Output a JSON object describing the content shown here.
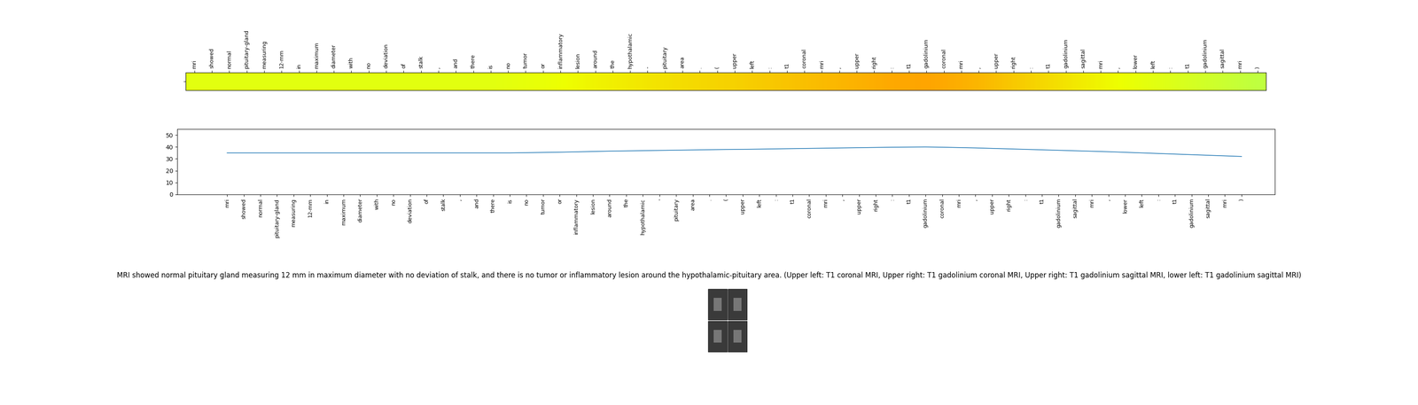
{
  "chart_data": [
    {
      "type": "heatmap",
      "categories": [
        "mri",
        "showed",
        "normal",
        "pituitary-gland",
        "measuring",
        "12-mm",
        "in",
        "maximum",
        "diameter",
        "with",
        "no",
        "deviation",
        "of",
        "stalk",
        ",",
        "and",
        "there",
        "is",
        "no",
        "tumor",
        "or",
        "inflammatory",
        "lesion",
        "around",
        "the",
        "hypothalamic",
        "-",
        "pituitary",
        "area",
        ".",
        "(",
        "upper",
        "left",
        ":",
        "t1",
        "coronal",
        "mri",
        ",",
        "upper",
        "right",
        ":",
        "t1",
        "gadolinium",
        "coronal",
        "mri",
        ",",
        "upper",
        "right",
        ":",
        "t1",
        "gadolinium",
        "sagittal",
        "mri",
        ",",
        "lower",
        "left",
        ":",
        "t1",
        "gadolinium",
        "sagittal",
        "mri",
        ")"
      ],
      "values": [
        35,
        35,
        35,
        35,
        35,
        35,
        35,
        35,
        35,
        35,
        35,
        35,
        35,
        35,
        35,
        35,
        35,
        35,
        35.2,
        35.4,
        35.6,
        35.9,
        36.2,
        36.5,
        36.7,
        36.9,
        37.1,
        37.3,
        37.5,
        37.7,
        37.9,
        38.0,
        38.2,
        38.4,
        38.6,
        38.8,
        39.0,
        39.2,
        39.4,
        39.6,
        39.8,
        39.9,
        40.0,
        39.8,
        39.5,
        39.2,
        38.8,
        38.4,
        38.0,
        37.6,
        37.2,
        36.8,
        36.4,
        36.0,
        35.5,
        35.0,
        34.5,
        34.0,
        33.5,
        33.0,
        32.5,
        32.0
      ]
    },
    {
      "type": "line",
      "color": "#1f77b4",
      "categories": [
        "mri",
        "showed",
        "normal",
        "pituitary-gland",
        "measuring",
        "12-mm",
        "in",
        "maximum",
        "diameter",
        "with",
        "no",
        "deviation",
        "of",
        "stalk",
        ",",
        "and",
        "there",
        "is",
        "no",
        "tumor",
        "or",
        "inflammatory",
        "lesion",
        "around",
        "the",
        "hypothalamic",
        "-",
        "pituitary",
        "area",
        ".",
        "(",
        "upper",
        "left",
        ":",
        "t1",
        "coronal",
        "mri",
        ",",
        "upper",
        "right",
        ":",
        "t1",
        "gadolinium",
        "coronal",
        "mri",
        ",",
        "upper",
        "right",
        ":",
        "t1",
        "gadolinium",
        "sagittal",
        "mri",
        ",",
        "lower",
        "left",
        ":",
        "t1",
        "gadolinium",
        "sagittal",
        "mri",
        ")"
      ],
      "values": [
        35,
        35,
        35,
        35,
        35,
        35,
        35,
        35,
        35,
        35,
        35,
        35,
        35,
        35,
        35,
        35,
        35,
        35,
        35.2,
        35.4,
        35.6,
        35.9,
        36.2,
        36.5,
        36.7,
        36.9,
        37.1,
        37.3,
        37.5,
        37.7,
        37.9,
        38.0,
        38.2,
        38.4,
        38.6,
        38.8,
        39.0,
        39.2,
        39.4,
        39.6,
        39.8,
        39.9,
        40.0,
        39.8,
        39.5,
        39.2,
        38.8,
        38.4,
        38.0,
        37.6,
        37.2,
        36.8,
        36.4,
        36.0,
        35.5,
        35.0,
        34.5,
        34.0,
        33.5,
        33.0,
        32.5,
        32.0
      ],
      "ylim": [
        0,
        55
      ],
      "yticks": [
        0,
        10,
        20,
        30,
        40,
        50
      ]
    }
  ],
  "caption": "MRI showed normal pituitary gland measuring 12 mm in maximum diameter with no deviation of stalk, and there is no tumor or inflammatory lesion around the hypothalamic-pituitary area. (Upper left: T1 coronal MRI, Upper right: T1 gadolinium coronal MRI, Upper right: T1 gadolinium sagittal MRI, lower left: T1 gadolinium sagittal MRI)"
}
